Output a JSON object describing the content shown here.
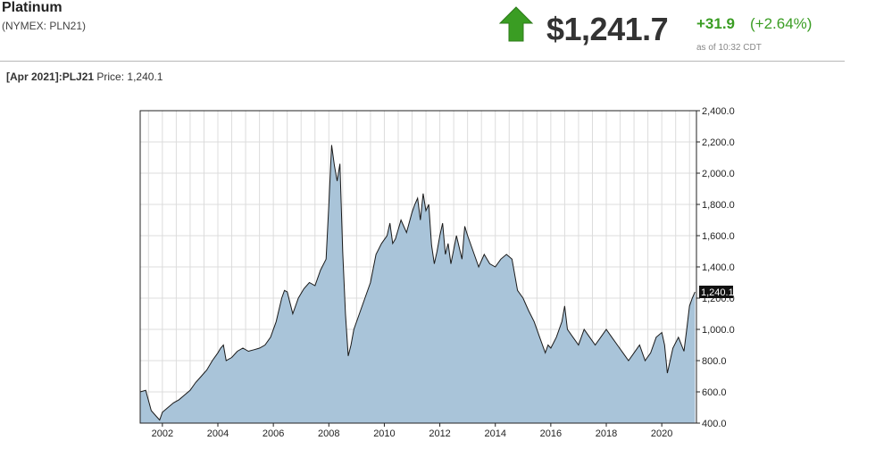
{
  "header": {
    "title": "Platinum",
    "subtitle": "(NYMEX: PLN21)",
    "price": "$1,241.7",
    "change": "+31.9",
    "change_pct": "(+2.64%)",
    "as_of": "as of 10:32 CDT",
    "arrow_icon": "up-arrow-icon",
    "up_color": "#3a9d23"
  },
  "contract": {
    "period": "[Apr 2021]:",
    "symbol": "PLJ21",
    "price_label": "Price:",
    "price_value": "1,240.1"
  },
  "chart_data": {
    "type": "area",
    "fill_color": "#a9c4d9",
    "line_color": "#1a1a1a",
    "grid": true,
    "y_axis_side": "right",
    "xlim": [
      2001.2,
      2021.25
    ],
    "ylim": [
      400,
      2400
    ],
    "xticks": [
      "2002",
      "2004",
      "2006",
      "2008",
      "2010",
      "2012",
      "2014",
      "2016",
      "2018",
      "2020"
    ],
    "yticks": [
      "400.0",
      "600.0",
      "800.0",
      "1,000.0",
      "1,200.0",
      "1,400.0",
      "1,600.0",
      "1,800.0",
      "2,000.0",
      "2,200.0",
      "2,400.0"
    ],
    "last_value_label": "1,240.1",
    "x": [
      2001.2,
      2001.4,
      2001.6,
      2001.8,
      2001.9,
      2002.0,
      2002.2,
      2002.4,
      2002.6,
      2002.8,
      2003.0,
      2003.2,
      2003.4,
      2003.6,
      2003.8,
      2004.0,
      2004.1,
      2004.2,
      2004.3,
      2004.5,
      2004.7,
      2004.9,
      2005.1,
      2005.3,
      2005.5,
      2005.7,
      2005.9,
      2006.1,
      2006.3,
      2006.4,
      2006.5,
      2006.7,
      2006.9,
      2007.1,
      2007.3,
      2007.5,
      2007.7,
      2007.9,
      2008.0,
      2008.1,
      2008.2,
      2008.3,
      2008.4,
      2008.5,
      2008.6,
      2008.7,
      2008.8,
      2008.9,
      2009.1,
      2009.3,
      2009.5,
      2009.7,
      2009.9,
      2010.1,
      2010.2,
      2010.3,
      2010.4,
      2010.5,
      2010.6,
      2010.8,
      2011.0,
      2011.1,
      2011.2,
      2011.3,
      2011.4,
      2011.5,
      2011.6,
      2011.7,
      2011.8,
      2011.9,
      2012.0,
      2012.1,
      2012.2,
      2012.3,
      2012.4,
      2012.6,
      2012.8,
      2012.9,
      2013.0,
      2013.2,
      2013.4,
      2013.6,
      2013.8,
      2014.0,
      2014.2,
      2014.4,
      2014.6,
      2014.8,
      2015.0,
      2015.2,
      2015.4,
      2015.6,
      2015.8,
      2015.9,
      2016.0,
      2016.2,
      2016.4,
      2016.5,
      2016.6,
      2016.8,
      2017.0,
      2017.2,
      2017.4,
      2017.6,
      2017.8,
      2018.0,
      2018.2,
      2018.4,
      2018.6,
      2018.8,
      2019.0,
      2019.2,
      2019.4,
      2019.6,
      2019.8,
      2020.0,
      2020.1,
      2020.2,
      2020.3,
      2020.4,
      2020.6,
      2020.8,
      2020.9,
      2021.0,
      2021.1,
      2021.2
    ],
    "y": [
      600,
      610,
      480,
      440,
      420,
      470,
      500,
      530,
      550,
      580,
      610,
      660,
      700,
      740,
      800,
      850,
      880,
      900,
      800,
      820,
      860,
      880,
      860,
      870,
      880,
      900,
      950,
      1050,
      1200,
      1250,
      1240,
      1100,
      1200,
      1260,
      1300,
      1280,
      1380,
      1450,
      1800,
      2180,
      2050,
      1950,
      2060,
      1500,
      1100,
      830,
      900,
      1000,
      1100,
      1200,
      1300,
      1480,
      1550,
      1600,
      1680,
      1550,
      1580,
      1640,
      1700,
      1620,
      1750,
      1800,
      1840,
      1700,
      1870,
      1760,
      1800,
      1540,
      1420,
      1500,
      1600,
      1680,
      1480,
      1550,
      1420,
      1600,
      1450,
      1660,
      1600,
      1500,
      1400,
      1480,
      1420,
      1400,
      1450,
      1480,
      1450,
      1250,
      1200,
      1120,
      1050,
      950,
      850,
      900,
      880,
      950,
      1050,
      1150,
      1000,
      950,
      900,
      1000,
      950,
      900,
      950,
      1000,
      950,
      900,
      850,
      800,
      850,
      900,
      800,
      850,
      950,
      980,
      900,
      720,
      800,
      880,
      950,
      860,
      1000,
      1150,
      1200,
      1240
    ]
  }
}
